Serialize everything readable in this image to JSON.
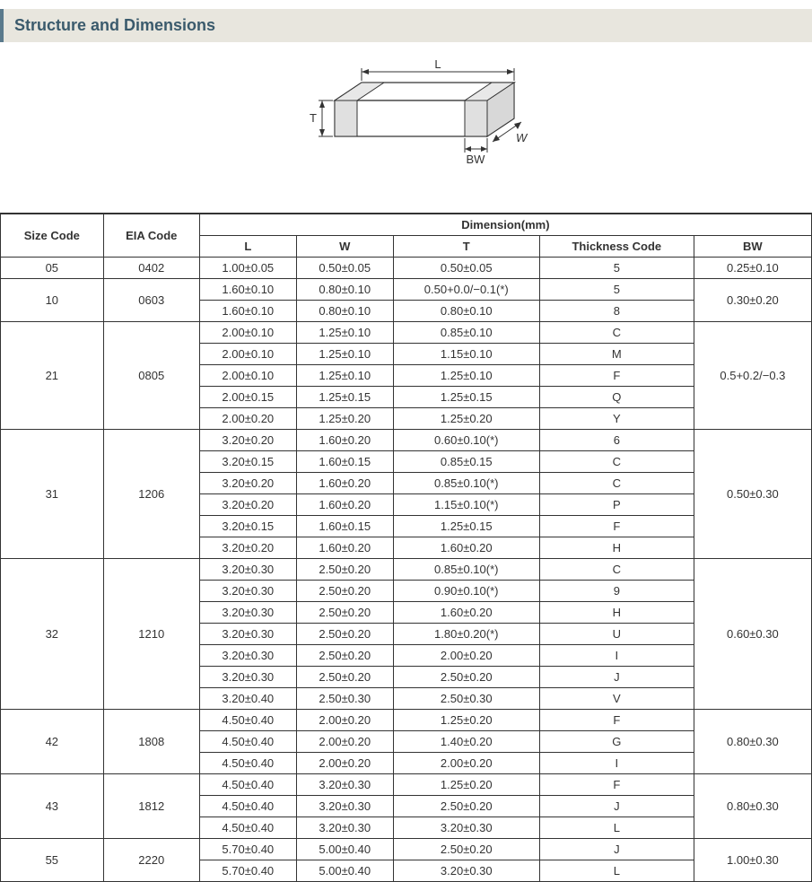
{
  "title": "Structure and Dimensions",
  "colors": {
    "header_bg": "#e8e6de",
    "header_accent": "#5a7a8c",
    "header_text": "#3a5a6c",
    "border": "#333333",
    "text": "#333333",
    "diagram_stroke": "#333333",
    "diagram_fill": "#ffffff",
    "diagram_shade": "#e8e8e8"
  },
  "diagram": {
    "labels": {
      "L": "L",
      "W": "W",
      "T": "T",
      "BW": "BW"
    }
  },
  "table": {
    "headers": {
      "size_code": "Size Code",
      "eia_code": "EIA Code",
      "dimension": "Dimension(mm)",
      "L": "L",
      "W": "W",
      "T": "T",
      "thickness_code": "Thickness Code",
      "BW": "BW"
    },
    "groups": [
      {
        "size_code": "05",
        "eia_code": "0402",
        "bw": "0.25±0.10",
        "rows": [
          {
            "L": "1.00±0.05",
            "W": "0.50±0.05",
            "T": "0.50±0.05",
            "tc": "5"
          }
        ]
      },
      {
        "size_code": "10",
        "eia_code": "0603",
        "bw": "0.30±0.20",
        "rows": [
          {
            "L": "1.60±0.10",
            "W": "0.80±0.10",
            "T": "0.50+0.0/−0.1(*)",
            "tc": "5"
          },
          {
            "L": "1.60±0.10",
            "W": "0.80±0.10",
            "T": "0.80±0.10",
            "tc": "8"
          }
        ]
      },
      {
        "size_code": "21",
        "eia_code": "0805",
        "bw": "0.5+0.2/−0.3",
        "rows": [
          {
            "L": "2.00±0.10",
            "W": "1.25±0.10",
            "T": "0.85±0.10",
            "tc": "C"
          },
          {
            "L": "2.00±0.10",
            "W": "1.25±0.10",
            "T": "1.15±0.10",
            "tc": "M"
          },
          {
            "L": "2.00±0.10",
            "W": "1.25±0.10",
            "T": "1.25±0.10",
            "tc": "F"
          },
          {
            "L": "2.00±0.15",
            "W": "1.25±0.15",
            "T": "1.25±0.15",
            "tc": "Q"
          },
          {
            "L": "2.00±0.20",
            "W": "1.25±0.20",
            "T": "1.25±0.20",
            "tc": "Y"
          }
        ]
      },
      {
        "size_code": "31",
        "eia_code": "1206",
        "bw": "0.50±0.30",
        "rows": [
          {
            "L": "3.20±0.20",
            "W": "1.60±0.20",
            "T": "0.60±0.10(*)",
            "tc": "6"
          },
          {
            "L": "3.20±0.15",
            "W": "1.60±0.15",
            "T": "0.85±0.15",
            "tc": "C"
          },
          {
            "L": "3.20±0.20",
            "W": "1.60±0.20",
            "T": "0.85±0.10(*)",
            "tc": "C"
          },
          {
            "L": "3.20±0.20",
            "W": "1.60±0.20",
            "T": "1.15±0.10(*)",
            "tc": "P"
          },
          {
            "L": "3.20±0.15",
            "W": "1.60±0.15",
            "T": "1.25±0.15",
            "tc": "F"
          },
          {
            "L": "3.20±0.20",
            "W": "1.60±0.20",
            "T": "1.60±0.20",
            "tc": "H"
          }
        ]
      },
      {
        "size_code": "32",
        "eia_code": "1210",
        "bw": "0.60±0.30",
        "rows": [
          {
            "L": "3.20±0.30",
            "W": "2.50±0.20",
            "T": "0.85±0.10(*)",
            "tc": "C"
          },
          {
            "L": "3.20±0.30",
            "W": "2.50±0.20",
            "T": "0.90±0.10(*)",
            "tc": "9"
          },
          {
            "L": "3.20±0.30",
            "W": "2.50±0.20",
            "T": "1.60±0.20",
            "tc": "H"
          },
          {
            "L": "3.20±0.30",
            "W": "2.50±0.20",
            "T": "1.80±0.20(*)",
            "tc": "U"
          },
          {
            "L": "3.20±0.30",
            "W": "2.50±0.20",
            "T": "2.00±0.20",
            "tc": "I"
          },
          {
            "L": "3.20±0.30",
            "W": "2.50±0.20",
            "T": "2.50±0.20",
            "tc": "J"
          },
          {
            "L": "3.20±0.40",
            "W": "2.50±0.30",
            "T": "2.50±0.30",
            "tc": "V"
          }
        ]
      },
      {
        "size_code": "42",
        "eia_code": "1808",
        "bw": "0.80±0.30",
        "rows": [
          {
            "L": "4.50±0.40",
            "W": "2.00±0.20",
            "T": "1.25±0.20",
            "tc": "F"
          },
          {
            "L": "4.50±0.40",
            "W": "2.00±0.20",
            "T": "1.40±0.20",
            "tc": "G"
          },
          {
            "L": "4.50±0.40",
            "W": "2.00±0.20",
            "T": "2.00±0.20",
            "tc": "I"
          }
        ]
      },
      {
        "size_code": "43",
        "eia_code": "1812",
        "bw": "0.80±0.30",
        "rows": [
          {
            "L": "4.50±0.40",
            "W": "3.20±0.30",
            "T": "1.25±0.20",
            "tc": "F"
          },
          {
            "L": "4.50±0.40",
            "W": "3.20±0.30",
            "T": "2.50±0.20",
            "tc": "J"
          },
          {
            "L": "4.50±0.40",
            "W": "3.20±0.30",
            "T": "3.20±0.30",
            "tc": "L"
          }
        ]
      },
      {
        "size_code": "55",
        "eia_code": "2220",
        "bw": "1.00±0.30",
        "rows": [
          {
            "L": "5.70±0.40",
            "W": "5.00±0.40",
            "T": "2.50±0.20",
            "tc": "J"
          },
          {
            "L": "5.70±0.40",
            "W": "5.00±0.40",
            "T": "3.20±0.30",
            "tc": "L"
          }
        ]
      }
    ]
  }
}
